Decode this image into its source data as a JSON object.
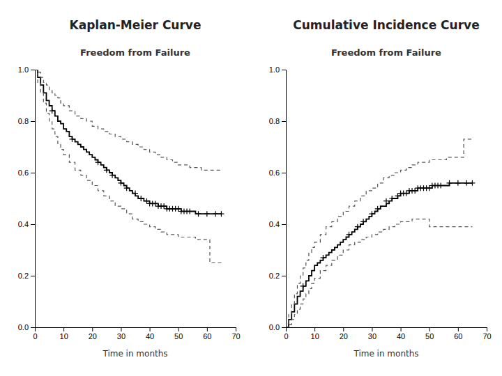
{
  "chart_data": [
    {
      "type": "line",
      "title": "Kaplan-Meier Curve",
      "subtitle": "Freedom from Failure",
      "x_label": "Time in months",
      "xlim": [
        0,
        70
      ],
      "ylim": [
        0.0,
        1.0
      ],
      "xticks": [
        0,
        10,
        20,
        30,
        40,
        50,
        60,
        70
      ],
      "yticks": [
        {
          "value": 0.0,
          "label": "0.0"
        },
        0.2,
        0.4,
        0.6,
        0.8,
        {
          "value": 1.0,
          "label": "1.0"
        }
      ],
      "grid": false,
      "series": [
        {
          "type": "step",
          "color": "#000000",
          "line_style": "solid",
          "x": [
            0,
            1,
            2,
            3,
            4,
            5,
            6,
            7,
            8,
            9,
            10,
            11,
            12,
            13,
            14,
            15,
            16,
            17,
            18,
            19,
            20,
            21,
            22,
            23,
            24,
            25,
            26,
            27,
            28,
            29,
            30,
            31,
            32,
            33,
            34,
            35,
            36,
            37,
            38,
            39,
            40,
            41,
            42,
            43,
            44,
            45,
            46,
            47,
            48,
            49,
            50,
            51,
            52,
            53,
            54,
            55,
            56,
            57,
            58,
            59,
            60,
            61,
            62,
            63,
            65
          ],
          "values": [
            1.0,
            0.97,
            0.94,
            0.91,
            0.88,
            0.86,
            0.84,
            0.82,
            0.8,
            0.79,
            0.77,
            0.76,
            0.74,
            0.73,
            0.72,
            0.71,
            0.7,
            0.69,
            0.68,
            0.67,
            0.66,
            0.65,
            0.64,
            0.63,
            0.62,
            0.61,
            0.6,
            0.59,
            0.58,
            0.57,
            0.56,
            0.55,
            0.54,
            0.53,
            0.52,
            0.51,
            0.5,
            0.5,
            0.49,
            0.49,
            0.48,
            0.48,
            0.48,
            0.47,
            0.47,
            0.47,
            0.46,
            0.46,
            0.46,
            0.46,
            0.46,
            0.45,
            0.45,
            0.45,
            0.45,
            0.45,
            0.44,
            0.44,
            0.44,
            0.44,
            0.44,
            0.44,
            0.44,
            0.44,
            0.44
          ]
        },
        {
          "type": "step",
          "color": "#555555",
          "line_style": "dashed",
          "x": [
            0,
            1,
            2,
            3,
            4,
            5,
            6,
            7,
            8,
            9,
            10,
            12,
            14,
            16,
            18,
            20,
            22,
            24,
            26,
            28,
            30,
            32,
            34,
            36,
            38,
            40,
            42,
            44,
            46,
            48,
            50,
            52,
            54,
            56,
            58,
            60,
            62,
            65
          ],
          "values": [
            1.0,
            0.99,
            0.97,
            0.95,
            0.94,
            0.92,
            0.91,
            0.9,
            0.89,
            0.87,
            0.86,
            0.84,
            0.82,
            0.81,
            0.8,
            0.78,
            0.77,
            0.76,
            0.75,
            0.74,
            0.73,
            0.72,
            0.71,
            0.7,
            0.69,
            0.68,
            0.67,
            0.66,
            0.65,
            0.64,
            0.63,
            0.63,
            0.62,
            0.62,
            0.61,
            0.61,
            0.61,
            0.61
          ]
        },
        {
          "type": "step",
          "color": "#555555",
          "line_style": "dashed",
          "x": [
            0,
            1,
            2,
            3,
            4,
            5,
            6,
            7,
            8,
            9,
            10,
            12,
            14,
            16,
            18,
            20,
            22,
            24,
            26,
            28,
            30,
            32,
            34,
            36,
            38,
            40,
            42,
            44,
            46,
            48,
            50,
            52,
            54,
            56,
            58,
            60,
            61,
            62,
            65
          ],
          "values": [
            1.0,
            0.95,
            0.91,
            0.87,
            0.83,
            0.8,
            0.77,
            0.74,
            0.71,
            0.69,
            0.67,
            0.64,
            0.61,
            0.59,
            0.57,
            0.55,
            0.53,
            0.51,
            0.49,
            0.47,
            0.46,
            0.44,
            0.42,
            0.41,
            0.4,
            0.39,
            0.38,
            0.37,
            0.36,
            0.36,
            0.35,
            0.35,
            0.35,
            0.34,
            0.34,
            0.34,
            0.25,
            0.25,
            0.25
          ]
        },
        {
          "type": "scatter",
          "color": "#000000",
          "marker": "plus",
          "x": [
            6,
            13,
            22,
            25,
            27,
            30,
            32,
            35,
            37,
            39,
            40,
            41,
            42,
            43,
            44,
            45,
            46,
            47,
            48,
            49,
            50,
            51,
            52,
            53,
            54,
            57,
            60,
            63,
            65
          ],
          "values": [
            0.84,
            0.73,
            0.64,
            0.61,
            0.59,
            0.56,
            0.54,
            0.52,
            0.5,
            0.49,
            0.48,
            0.48,
            0.48,
            0.47,
            0.47,
            0.47,
            0.46,
            0.46,
            0.46,
            0.46,
            0.46,
            0.45,
            0.45,
            0.45,
            0.45,
            0.44,
            0.44,
            0.44,
            0.44
          ]
        }
      ]
    },
    {
      "type": "line",
      "title": "Cumulative Incidence Curve",
      "subtitle": "Freedom from Failure",
      "x_label": "Time in months",
      "xlim": [
        0,
        70
      ],
      "ylim": [
        0.0,
        1.0
      ],
      "xticks": [
        0,
        10,
        20,
        30,
        40,
        50,
        60,
        70
      ],
      "yticks": [
        {
          "value": 0.0,
          "label": "0.0"
        },
        0.2,
        0.4,
        0.6,
        0.8,
        {
          "value": 1.0,
          "label": "1.0"
        }
      ],
      "grid": false,
      "series": [
        {
          "type": "step",
          "color": "#000000",
          "line_style": "solid",
          "x": [
            0,
            1,
            2,
            3,
            4,
            5,
            6,
            7,
            8,
            9,
            10,
            11,
            12,
            13,
            14,
            15,
            16,
            17,
            18,
            19,
            20,
            21,
            22,
            23,
            24,
            25,
            26,
            27,
            28,
            29,
            30,
            31,
            32,
            33,
            34,
            35,
            36,
            37,
            38,
            39,
            40,
            41,
            42,
            43,
            44,
            45,
            46,
            47,
            48,
            49,
            50,
            51,
            52,
            53,
            54,
            55,
            56,
            57,
            58,
            59,
            60,
            61,
            62,
            63,
            65
          ],
          "values": [
            0.0,
            0.03,
            0.06,
            0.09,
            0.12,
            0.14,
            0.16,
            0.18,
            0.2,
            0.22,
            0.24,
            0.25,
            0.26,
            0.27,
            0.28,
            0.29,
            0.3,
            0.31,
            0.32,
            0.33,
            0.34,
            0.35,
            0.36,
            0.37,
            0.38,
            0.39,
            0.4,
            0.41,
            0.42,
            0.43,
            0.44,
            0.45,
            0.46,
            0.47,
            0.47,
            0.48,
            0.49,
            0.5,
            0.5,
            0.51,
            0.52,
            0.52,
            0.52,
            0.53,
            0.53,
            0.53,
            0.54,
            0.54,
            0.54,
            0.54,
            0.54,
            0.55,
            0.55,
            0.55,
            0.55,
            0.55,
            0.55,
            0.56,
            0.56,
            0.56,
            0.56,
            0.56,
            0.56,
            0.56,
            0.56
          ]
        },
        {
          "type": "step",
          "color": "#555555",
          "line_style": "dashed",
          "x": [
            0,
            1,
            2,
            3,
            4,
            5,
            6,
            7,
            8,
            9,
            10,
            12,
            14,
            16,
            18,
            20,
            22,
            24,
            26,
            28,
            30,
            32,
            34,
            36,
            38,
            40,
            42,
            44,
            46,
            48,
            50,
            52,
            54,
            56,
            58,
            60,
            61,
            62,
            65
          ],
          "values": [
            0.0,
            0.05,
            0.09,
            0.13,
            0.17,
            0.2,
            0.23,
            0.26,
            0.29,
            0.31,
            0.33,
            0.36,
            0.39,
            0.41,
            0.43,
            0.45,
            0.47,
            0.49,
            0.51,
            0.53,
            0.54,
            0.56,
            0.58,
            0.59,
            0.6,
            0.61,
            0.62,
            0.63,
            0.64,
            0.64,
            0.65,
            0.65,
            0.65,
            0.66,
            0.66,
            0.66,
            0.66,
            0.73,
            0.73
          ]
        },
        {
          "type": "step",
          "color": "#555555",
          "line_style": "dashed",
          "x": [
            0,
            1,
            2,
            3,
            4,
            5,
            6,
            7,
            8,
            9,
            10,
            12,
            14,
            16,
            18,
            20,
            22,
            24,
            26,
            28,
            30,
            32,
            34,
            36,
            38,
            40,
            42,
            44,
            46,
            48,
            50,
            52,
            54,
            56,
            58,
            60,
            62,
            65
          ],
          "values": [
            0.0,
            0.01,
            0.03,
            0.05,
            0.07,
            0.09,
            0.11,
            0.13,
            0.15,
            0.17,
            0.19,
            0.22,
            0.24,
            0.26,
            0.28,
            0.3,
            0.32,
            0.33,
            0.34,
            0.35,
            0.36,
            0.37,
            0.38,
            0.39,
            0.4,
            0.41,
            0.41,
            0.42,
            0.42,
            0.42,
            0.39,
            0.39,
            0.39,
            0.39,
            0.39,
            0.39,
            0.39,
            0.39
          ]
        },
        {
          "type": "scatter",
          "color": "#000000",
          "marker": "plus",
          "x": [
            6,
            13,
            22,
            25,
            27,
            30,
            32,
            35,
            37,
            39,
            40,
            41,
            42,
            43,
            44,
            45,
            46,
            47,
            48,
            49,
            50,
            51,
            52,
            53,
            54,
            57,
            60,
            63,
            65
          ],
          "values": [
            0.16,
            0.27,
            0.36,
            0.39,
            0.41,
            0.44,
            0.46,
            0.49,
            0.5,
            0.51,
            0.52,
            0.52,
            0.52,
            0.53,
            0.53,
            0.53,
            0.54,
            0.54,
            0.54,
            0.54,
            0.54,
            0.55,
            0.55,
            0.55,
            0.55,
            0.56,
            0.56,
            0.56,
            0.56
          ]
        }
      ]
    }
  ]
}
